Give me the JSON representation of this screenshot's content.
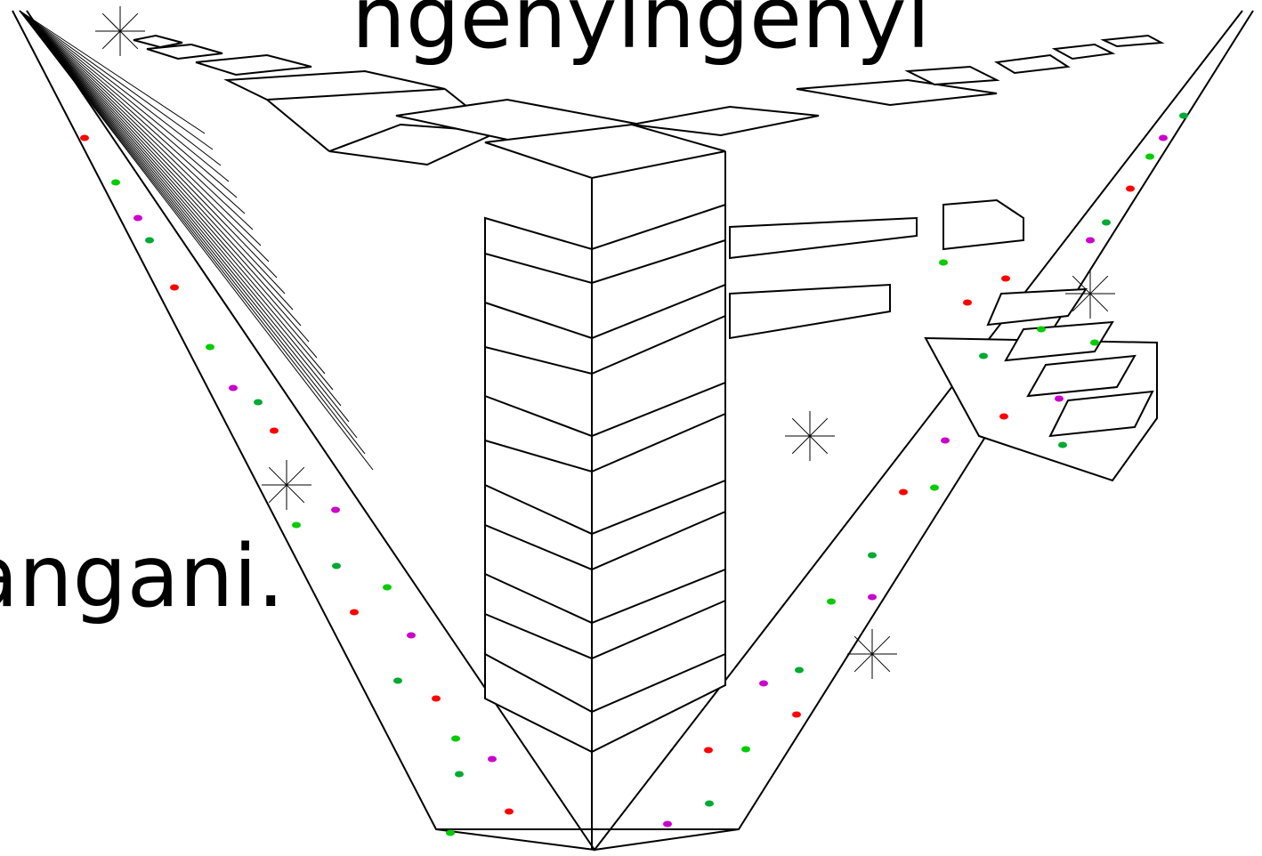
{
  "captions": {
    "top": "ngenyingenyi",
    "left": "angani."
  },
  "illustration": {
    "subject": "three-point perspective drawing of buildings and stairs along a street",
    "line_color": "#000000",
    "dot_colors": [
      "#ff0000",
      "#00cc00",
      "#cc00cc",
      "#00aa33"
    ]
  }
}
